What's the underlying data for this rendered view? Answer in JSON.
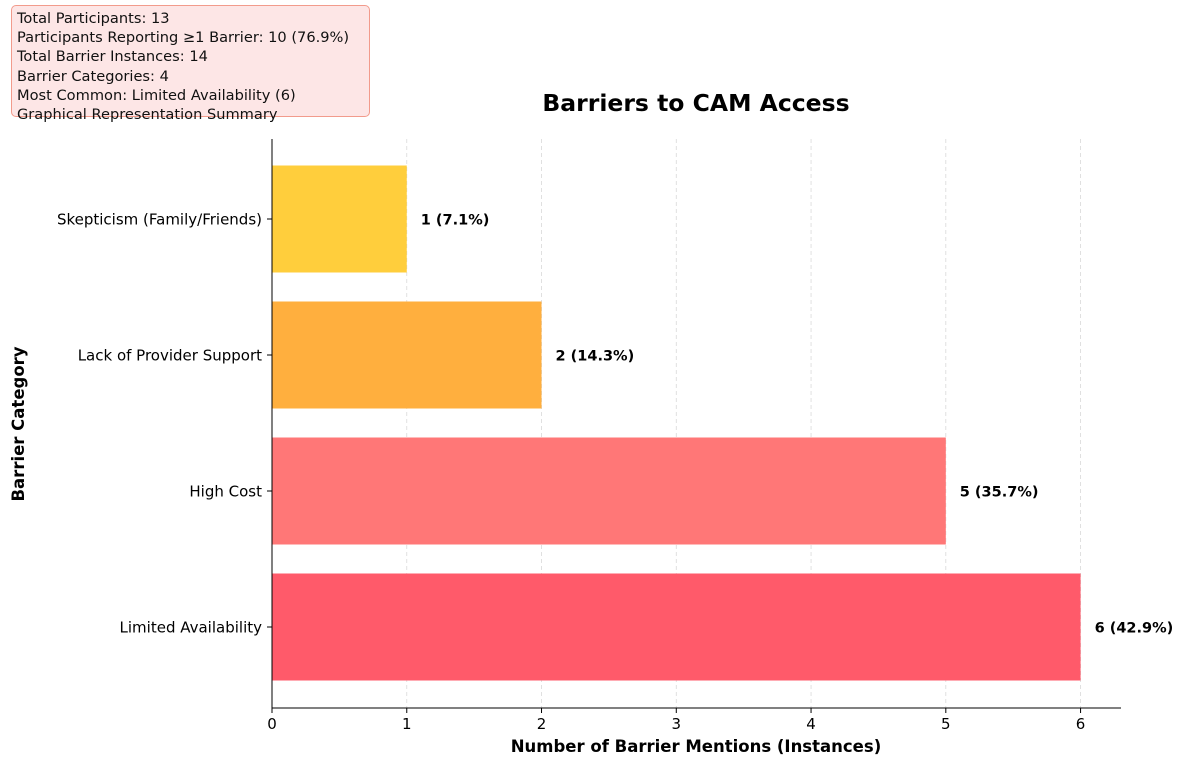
{
  "summary": {
    "lines": [
      "Total Participants: 13",
      "Participants Reporting ≥1 Barrier: 10 (76.9%)",
      "Total Barrier Instances: 14",
      "Barrier Categories: 4",
      "Most Common: Limited Availability (6)",
      "Graphical Representation Summary"
    ]
  },
  "chart_data": {
    "type": "bar",
    "orientation": "horizontal",
    "title": "Barriers to CAM Access",
    "xlabel": "Number of Barrier Mentions (Instances)",
    "ylabel": "Barrier Category",
    "categories": [
      "Limited Availability",
      "High Cost",
      "Lack of Provider Support",
      "Skepticism (Family/Friends)"
    ],
    "values": [
      6,
      5,
      2,
      1
    ],
    "value_labels": [
      "6 (42.9%)",
      "5 (35.7%)",
      "2 (14.3%)",
      "1 (7.1%)"
    ],
    "colors": [
      "#ff5a6a",
      "#ff7777",
      "#ffaf3e",
      "#ffce3c"
    ],
    "xlim": [
      0,
      6.3
    ],
    "xticks": [
      0,
      1,
      2,
      3,
      4,
      5,
      6
    ],
    "grid": "vertical dashed",
    "legend": "none"
  }
}
